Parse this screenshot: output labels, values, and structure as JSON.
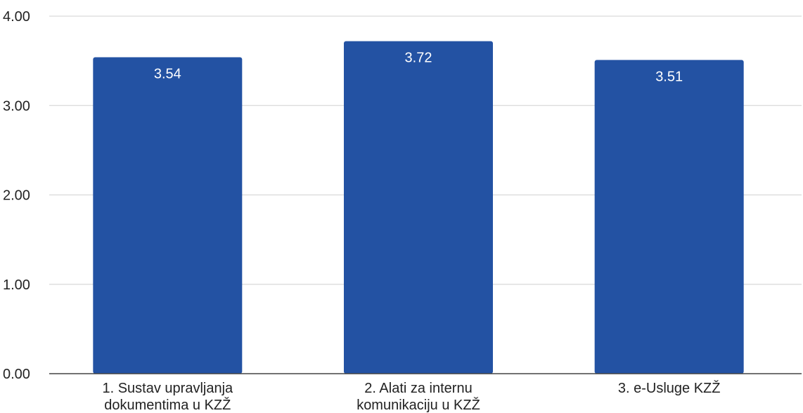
{
  "chart_data": {
    "type": "bar",
    "categories": [
      [
        "1. Sustav upravljanja",
        "dokumentima u KZŽ"
      ],
      [
        "2. Alati za internu",
        "komunikaciju u KZŽ"
      ],
      [
        "3. e-Usluge KZŽ"
      ]
    ],
    "values": [
      3.54,
      3.72,
      3.51
    ],
    "data_labels": [
      "3.54",
      "3.72",
      "3.51"
    ],
    "yticks": [
      "0.00",
      "1.00",
      "2.00",
      "3.00",
      "4.00"
    ],
    "ylim": [
      0,
      4
    ],
    "grid": true,
    "legend": "none",
    "bar_color": "#2352A3",
    "title": "",
    "xlabel": "",
    "ylabel": ""
  }
}
